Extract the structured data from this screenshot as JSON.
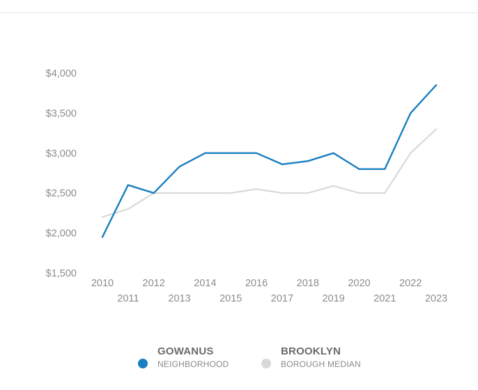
{
  "chart_data": {
    "type": "line",
    "title": "",
    "xlabel": "",
    "ylabel": "",
    "x": [
      "2010",
      "2011",
      "2012",
      "2013",
      "2014",
      "2015",
      "2016",
      "2017",
      "2018",
      "2019",
      "2020",
      "2021",
      "2022",
      "2023"
    ],
    "y_ticks": [
      "$1,500",
      "$2,000",
      "$2,500",
      "$3,000",
      "$3,500",
      "$4,000"
    ],
    "y_tick_values": [
      1500,
      2000,
      2500,
      3000,
      3500,
      4000
    ],
    "ylim": [
      1500,
      4000
    ],
    "grid": false,
    "legend_position": "bottom",
    "series": [
      {
        "name": "GOWANUS",
        "subtitle": "NEIGHBORHOOD",
        "color": "#1a7fc1",
        "values": [
          1950,
          2600,
          2500,
          2830,
          3000,
          3000,
          3000,
          2860,
          2900,
          3000,
          2800,
          2800,
          3500,
          3850
        ]
      },
      {
        "name": "BROOKLYN",
        "subtitle": "BOROUGH MEDIAN",
        "color": "#d9d9d9",
        "values": [
          2200,
          2300,
          2500,
          2500,
          2500,
          2500,
          2550,
          2500,
          2500,
          2590,
          2500,
          2500,
          3000,
          3300
        ]
      }
    ]
  }
}
